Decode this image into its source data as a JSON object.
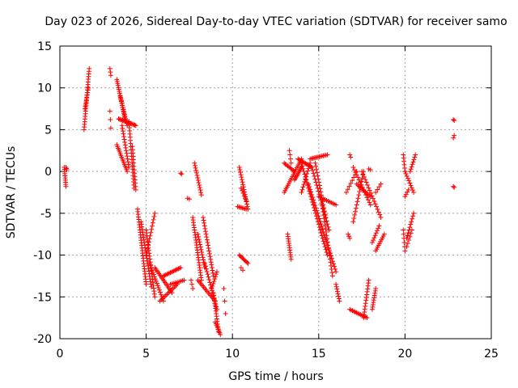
{
  "chart_data": {
    "type": "scatter",
    "title": "Day 023 of 2026, Sidereal Day-to-day VTEC variation (SDTVAR) for receiver samo",
    "xlabel": "GPS time / hours",
    "ylabel": "SDTVAR / TECUs",
    "xlim": [
      0,
      25
    ],
    "ylim": [
      -20,
      15
    ],
    "xticks": [
      0,
      5,
      10,
      15,
      20,
      25
    ],
    "yticks": [
      -20,
      -15,
      -10,
      -5,
      0,
      5,
      10,
      15
    ],
    "xtick_labels": [
      "0",
      "5",
      "10",
      "15",
      "20",
      "25"
    ],
    "ytick_labels": [
      "-20",
      "-15",
      "-10",
      "-5",
      "0",
      "5",
      "10",
      "15"
    ],
    "grid": true,
    "marker": "+",
    "color": "#ff0000",
    "segments": [
      {
        "x0": 0.25,
        "y0": 0.5,
        "x1": 0.35,
        "y1": -1.8,
        "n": 10
      },
      {
        "x0": 0.35,
        "y0": 0.5,
        "x1": 0.4,
        "y1": 0.2,
        "n": 3
      },
      {
        "x0": 1.4,
        "y0": 5.0,
        "x1": 1.7,
        "y1": 12.3,
        "n": 24
      },
      {
        "x0": 1.45,
        "y0": 7.5,
        "x1": 1.65,
        "y1": 10.0,
        "n": 10
      },
      {
        "x0": 2.9,
        "y0": 12.3,
        "x1": 2.95,
        "y1": 11.5,
        "n": 3
      },
      {
        "x0": 2.9,
        "y0": 7.2,
        "x1": 2.95,
        "y1": 5.2,
        "n": 3
      },
      {
        "x0": 3.3,
        "y0": 11.0,
        "x1": 3.8,
        "y1": 6.0,
        "n": 22
      },
      {
        "x0": 3.5,
        "y0": 9.0,
        "x1": 3.9,
        "y1": 5.5,
        "n": 14
      },
      {
        "x0": 3.4,
        "y0": 6.3,
        "x1": 4.4,
        "y1": 5.5,
        "n": 18
      },
      {
        "x0": 3.3,
        "y0": 3.2,
        "x1": 3.9,
        "y1": 0.0,
        "n": 16
      },
      {
        "x0": 3.6,
        "y0": 5.5,
        "x1": 4.0,
        "y1": 0.5,
        "n": 16
      },
      {
        "x0": 4.0,
        "y0": 6.0,
        "x1": 4.3,
        "y1": -2.0,
        "n": 22
      },
      {
        "x0": 4.2,
        "y0": 3.0,
        "x1": 4.4,
        "y1": -2.2,
        "n": 14
      },
      {
        "x0": 4.5,
        "y0": -4.5,
        "x1": 5.0,
        "y1": -13.5,
        "n": 30
      },
      {
        "x0": 4.7,
        "y0": -6.0,
        "x1": 5.3,
        "y1": -13.8,
        "n": 26
      },
      {
        "x0": 5.0,
        "y0": -7.0,
        "x1": 5.5,
        "y1": -15.0,
        "n": 24
      },
      {
        "x0": 5.5,
        "y0": -5.0,
        "x1": 5.0,
        "y1": -10.0,
        "n": 14
      },
      {
        "x0": 5.2,
        "y0": -11.0,
        "x1": 6.0,
        "y1": -15.5,
        "n": 18
      },
      {
        "x0": 5.5,
        "y0": -11.5,
        "x1": 6.5,
        "y1": -14.5,
        "n": 18
      },
      {
        "x0": 6.0,
        "y0": -12.5,
        "x1": 7.0,
        "y1": -11.5,
        "n": 16
      },
      {
        "x0": 5.8,
        "y0": -15.5,
        "x1": 6.8,
        "y1": -13.5,
        "n": 14
      },
      {
        "x0": 6.4,
        "y0": -13.5,
        "x1": 7.2,
        "y1": -13.0,
        "n": 10
      },
      {
        "x0": 7.0,
        "y0": -0.2,
        "x1": 7.05,
        "y1": -0.3,
        "n": 2
      },
      {
        "x0": 7.4,
        "y0": -3.2,
        "x1": 7.5,
        "y1": -3.3,
        "n": 2
      },
      {
        "x0": 7.8,
        "y0": 1.0,
        "x1": 8.2,
        "y1": -2.8,
        "n": 14
      },
      {
        "x0": 7.7,
        "y0": -5.5,
        "x1": 8.2,
        "y1": -13.0,
        "n": 26
      },
      {
        "x0": 8.0,
        "y0": -7.5,
        "x1": 8.4,
        "y1": -11.5,
        "n": 14
      },
      {
        "x0": 8.3,
        "y0": -5.5,
        "x1": 8.9,
        "y1": -12.5,
        "n": 22
      },
      {
        "x0": 8.4,
        "y0": -11.0,
        "x1": 9.1,
        "y1": -16.5,
        "n": 18
      },
      {
        "x0": 8.0,
        "y0": -13.0,
        "x1": 9.0,
        "y1": -15.5,
        "n": 16
      },
      {
        "x0": 8.8,
        "y0": -14.0,
        "x1": 9.1,
        "y1": -12.0,
        "n": 8
      },
      {
        "x0": 8.9,
        "y0": -14.5,
        "x1": 9.2,
        "y1": -19.2,
        "n": 16
      },
      {
        "x0": 9.0,
        "y0": -18.0,
        "x1": 9.3,
        "y1": -19.5,
        "n": 8
      },
      {
        "x0": 7.6,
        "y0": -13.0,
        "x1": 7.7,
        "y1": -14.0,
        "n": 3
      },
      {
        "x0": 9.5,
        "y0": -14.0,
        "x1": 9.6,
        "y1": -17.0,
        "n": 3
      },
      {
        "x0": 10.4,
        "y0": 0.5,
        "x1": 10.9,
        "y1": -4.5,
        "n": 18
      },
      {
        "x0": 10.5,
        "y0": -2.0,
        "x1": 10.8,
        "y1": -3.5,
        "n": 6
      },
      {
        "x0": 10.3,
        "y0": -4.2,
        "x1": 10.8,
        "y1": -4.5,
        "n": 8
      },
      {
        "x0": 10.4,
        "y0": -10.0,
        "x1": 10.9,
        "y1": -11.0,
        "n": 10
      },
      {
        "x0": 10.5,
        "y0": -11.5,
        "x1": 10.6,
        "y1": -11.8,
        "n": 2
      },
      {
        "x0": 13.0,
        "y0": -2.5,
        "x1": 14.0,
        "y1": 1.5,
        "n": 20
      },
      {
        "x0": 13.3,
        "y0": 2.5,
        "x1": 13.4,
        "y1": 1.0,
        "n": 4
      },
      {
        "x0": 13.0,
        "y0": 1.0,
        "x1": 13.6,
        "y1": 0.0,
        "n": 10
      },
      {
        "x0": 13.2,
        "y0": -7.5,
        "x1": 13.4,
        "y1": -10.5,
        "n": 12
      },
      {
        "x0": 13.6,
        "y0": -1.0,
        "x1": 14.0,
        "y1": 0.5,
        "n": 10
      },
      {
        "x0": 13.8,
        "y0": 1.5,
        "x1": 14.6,
        "y1": 0.5,
        "n": 14
      },
      {
        "x0": 14.0,
        "y0": -2.5,
        "x1": 14.5,
        "y1": 1.0,
        "n": 12
      },
      {
        "x0": 14.5,
        "y0": 1.5,
        "x1": 15.5,
        "y1": 2.0,
        "n": 14
      },
      {
        "x0": 14.8,
        "y0": 1.0,
        "x1": 15.4,
        "y1": -5.5,
        "n": 18
      },
      {
        "x0": 14.0,
        "y0": 1.0,
        "x1": 15.5,
        "y1": -10.0,
        "n": 34
      },
      {
        "x0": 14.4,
        "y0": -1.5,
        "x1": 16.0,
        "y1": -12.0,
        "n": 34
      },
      {
        "x0": 14.6,
        "y0": 0.5,
        "x1": 15.6,
        "y1": -7.0,
        "n": 22
      },
      {
        "x0": 15.2,
        "y0": -4.0,
        "x1": 15.8,
        "y1": -12.5,
        "n": 22
      },
      {
        "x0": 15.0,
        "y0": -3.0,
        "x1": 16.0,
        "y1": -4.0,
        "n": 12
      },
      {
        "x0": 16.0,
        "y0": -13.5,
        "x1": 16.2,
        "y1": -15.5,
        "n": 8
      },
      {
        "x0": 16.8,
        "y0": 2.0,
        "x1": 16.85,
        "y1": 1.7,
        "n": 2
      },
      {
        "x0": 16.7,
        "y0": -7.5,
        "x1": 16.8,
        "y1": -8.0,
        "n": 3
      },
      {
        "x0": 16.6,
        "y0": -2.5,
        "x1": 17.2,
        "y1": 0.0,
        "n": 8
      },
      {
        "x0": 17.0,
        "y0": -6.0,
        "x1": 17.6,
        "y1": 0.0,
        "n": 16
      },
      {
        "x0": 17.0,
        "y0": 0.5,
        "x1": 18.0,
        "y1": -4.0,
        "n": 16
      },
      {
        "x0": 17.2,
        "y0": -1.5,
        "x1": 18.0,
        "y1": -3.0,
        "n": 12
      },
      {
        "x0": 17.5,
        "y0": 0.0,
        "x1": 18.6,
        "y1": -5.5,
        "n": 18
      },
      {
        "x0": 17.9,
        "y0": 0.3,
        "x1": 18.0,
        "y1": 0.2,
        "n": 2
      },
      {
        "x0": 16.8,
        "y0": -16.5,
        "x1": 17.8,
        "y1": -17.5,
        "n": 14
      },
      {
        "x0": 17.6,
        "y0": -17.5,
        "x1": 17.9,
        "y1": -13.0,
        "n": 14
      },
      {
        "x0": 18.1,
        "y0": -16.5,
        "x1": 18.3,
        "y1": -14.0,
        "n": 10
      },
      {
        "x0": 18.1,
        "y0": -8.5,
        "x1": 18.5,
        "y1": -6.5,
        "n": 8
      },
      {
        "x0": 18.3,
        "y0": -2.5,
        "x1": 18.6,
        "y1": -1.5,
        "n": 4
      },
      {
        "x0": 18.3,
        "y0": -9.5,
        "x1": 18.8,
        "y1": -7.5,
        "n": 10
      },
      {
        "x0": 19.9,
        "y0": 2.0,
        "x1": 20.0,
        "y1": 0.0,
        "n": 6
      },
      {
        "x0": 20.0,
        "y0": 0.0,
        "x1": 20.5,
        "y1": -2.5,
        "n": 10
      },
      {
        "x0": 20.0,
        "y0": -3.0,
        "x1": 20.2,
        "y1": -2.2,
        "n": 4
      },
      {
        "x0": 20.3,
        "y0": 0.0,
        "x1": 20.6,
        "y1": 2.0,
        "n": 8
      },
      {
        "x0": 19.9,
        "y0": -7.0,
        "x1": 20.0,
        "y1": -9.5,
        "n": 6
      },
      {
        "x0": 20.1,
        "y0": -8.0,
        "x1": 20.5,
        "y1": -5.0,
        "n": 10
      },
      {
        "x0": 20.1,
        "y0": -9.0,
        "x1": 20.4,
        "y1": -7.0,
        "n": 6
      },
      {
        "x0": 22.8,
        "y0": 6.2,
        "x1": 22.85,
        "y1": 6.1,
        "n": 2
      },
      {
        "x0": 22.8,
        "y0": 4.0,
        "x1": 22.85,
        "y1": 4.3,
        "n": 2
      },
      {
        "x0": 22.8,
        "y0": -1.8,
        "x1": 22.85,
        "y1": -1.9,
        "n": 2
      }
    ]
  }
}
